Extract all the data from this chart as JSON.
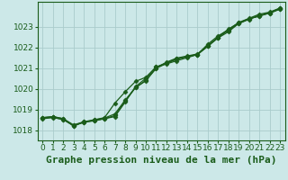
{
  "background_color": "#cce8e8",
  "grid_color": "#aacccc",
  "plot_bg": "#cce8e8",
  "title": "Graphe pression niveau de la mer (hPa)",
  "xlim": [
    -0.5,
    23.5
  ],
  "ylim": [
    1017.5,
    1024.2
  ],
  "yticks": [
    1018,
    1019,
    1020,
    1021,
    1022,
    1023
  ],
  "xticks": [
    0,
    1,
    2,
    3,
    4,
    5,
    6,
    7,
    8,
    9,
    10,
    11,
    12,
    13,
    14,
    15,
    16,
    17,
    18,
    19,
    20,
    21,
    22,
    23
  ],
  "line_color": "#1a5c1a",
  "series": [
    [
      1018.6,
      1018.65,
      1018.55,
      1018.2,
      1018.4,
      1018.45,
      1018.55,
      1018.65,
      1019.35,
      1020.1,
      1020.5,
      1021.05,
      1021.25,
      1021.45,
      1021.55,
      1021.65,
      1022.05,
      1022.45,
      1022.75,
      1023.15,
      1023.35,
      1023.55,
      1023.65,
      1023.85
    ],
    [
      1018.6,
      1018.65,
      1018.55,
      1018.25,
      1018.4,
      1018.5,
      1018.6,
      1019.3,
      1019.85,
      1020.35,
      1020.55,
      1021.05,
      1021.2,
      1021.35,
      1021.5,
      1021.65,
      1022.15,
      1022.55,
      1022.85,
      1023.2,
      1023.4,
      1023.6,
      1023.7,
      1023.9
    ],
    [
      1018.58,
      1018.62,
      1018.5,
      1018.22,
      1018.38,
      1018.48,
      1018.58,
      1018.78,
      1019.45,
      1020.05,
      1020.4,
      1021.0,
      1021.28,
      1021.48,
      1021.58,
      1021.68,
      1022.08,
      1022.48,
      1022.88,
      1023.18,
      1023.38,
      1023.5,
      1023.68,
      1023.88
    ],
    [
      1018.55,
      1018.6,
      1018.52,
      1018.2,
      1018.38,
      1018.45,
      1018.55,
      1018.7,
      1019.4,
      1020.05,
      1020.38,
      1020.98,
      1021.22,
      1021.42,
      1021.55,
      1021.65,
      1022.05,
      1022.48,
      1022.82,
      1023.15,
      1023.38,
      1023.52,
      1023.65,
      1023.85
    ]
  ],
  "marker": "D",
  "marker_size": 2.5,
  "line_width": 0.9,
  "title_fontsize": 8,
  "tick_fontsize": 6.5,
  "title_color": "#1a5c1a",
  "tick_color": "#1a5c1a",
  "spine_color": "#1a5c1a"
}
